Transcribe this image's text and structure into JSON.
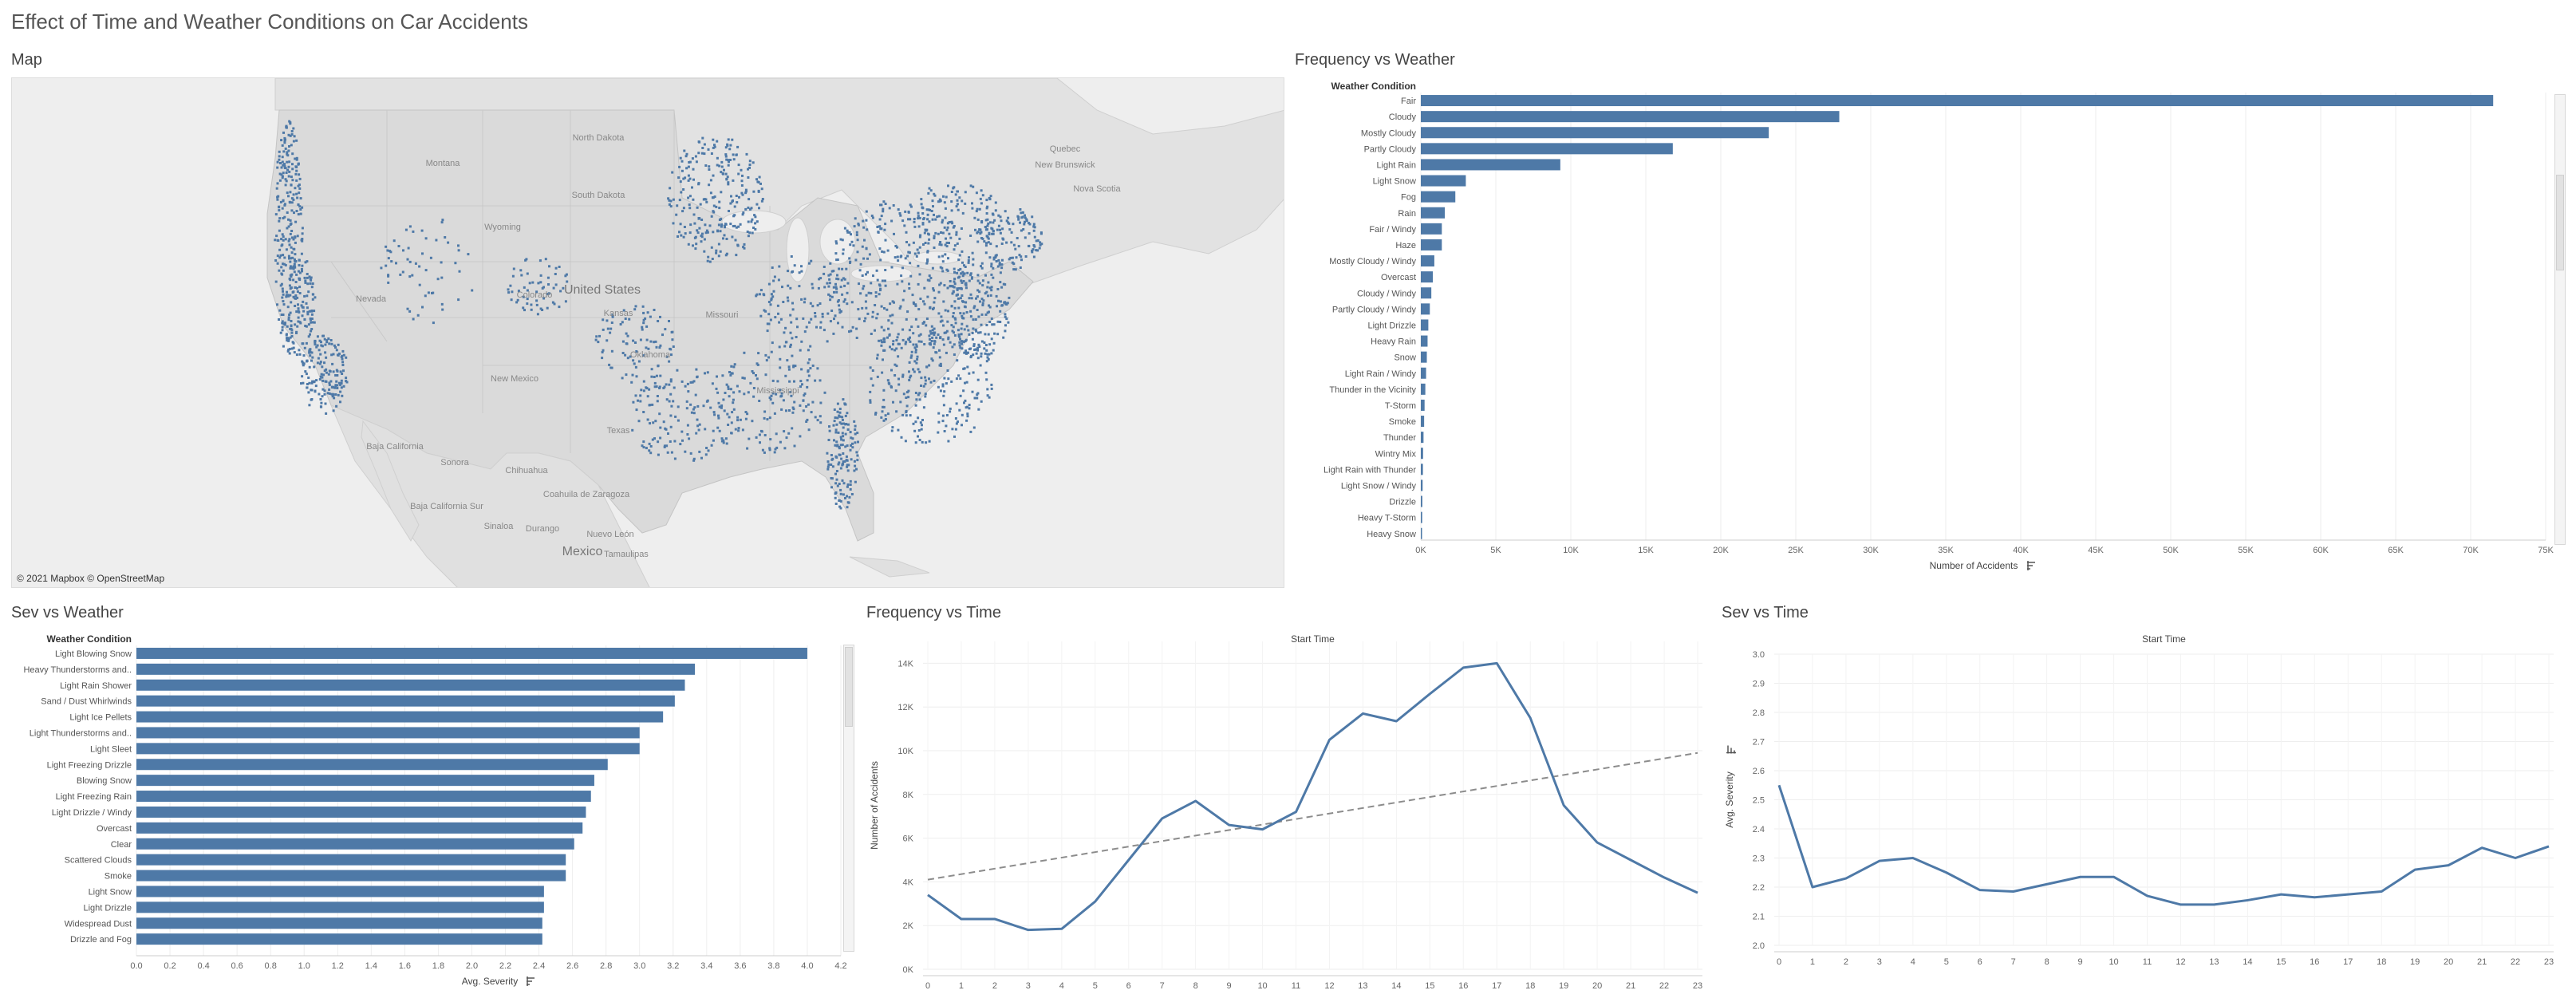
{
  "dashboard": {
    "title": "Effect of Time and Weather Conditions on Car Accidents"
  },
  "map": {
    "title": "Map",
    "credit": "© 2021 Mapbox © OpenStreetMap",
    "labels": {
      "north_dakota": "North Dakota",
      "south_dakota": "South Dakota",
      "montana": "Montana",
      "wyoming": "Wyoming",
      "nevada": "Nevada",
      "colorado": "Colorado",
      "kansas": "Kansas",
      "united_states": "United States",
      "new_mexico": "New Mexico",
      "oklahoma": "Oklahoma",
      "texas": "Texas",
      "missouri": "Missouri",
      "mississippi": "Mississippi",
      "baja_california": "Baja California",
      "sonora": "Sonora",
      "chihuahua": "Chihuahua",
      "coahuila": "Coahuila de Zaragoza",
      "nuevo_leon": "Nuevo León",
      "baja_california_sur": "Baja California Sur",
      "sinaloa": "Sinaloa",
      "durango": "Durango",
      "tamaulipas": "Tamaulipas",
      "mexico": "Mexico",
      "new_brunswick": "New Brunswick",
      "nova_scotia": "Nova Scotia",
      "quebec": "Quebec"
    },
    "colors": {
      "land": "#dcdcdc",
      "border": "#c4c4c4",
      "water": "#eeeeee",
      "points": "#4e79a7"
    }
  },
  "freq_weather": {
    "title": "Frequency vs Weather",
    "header": "Weather Condition",
    "x_label": "Number of Accidents",
    "sort_icon": "sort-descending-icon",
    "chart_data": {
      "type": "bar",
      "orientation": "horizontal",
      "categories": [
        "Fair",
        "Cloudy",
        "Mostly Cloudy",
        "Partly Cloudy",
        "Light Rain",
        "Light Snow",
        "Fog",
        "Rain",
        "Fair / Windy",
        "Haze",
        "Mostly Cloudy / Windy",
        "Overcast",
        "Cloudy / Windy",
        "Partly Cloudy / Windy",
        "Light Drizzle",
        "Heavy Rain",
        "Snow",
        "Light Rain / Windy",
        "Thunder in the Vicinity",
        "T-Storm",
        "Smoke",
        "Thunder",
        "Wintry Mix",
        "Light Rain with Thunder",
        "Light Snow / Windy",
        "Drizzle",
        "Heavy T-Storm",
        "Heavy Snow"
      ],
      "values": [
        71500,
        27900,
        23200,
        16800,
        9300,
        3000,
        2300,
        1600,
        1400,
        1400,
        900,
        800,
        700,
        600,
        500,
        450,
        400,
        350,
        300,
        250,
        220,
        180,
        150,
        140,
        120,
        100,
        90,
        80
      ],
      "xticks": [
        "0K",
        "5K",
        "10K",
        "15K",
        "20K",
        "25K",
        "30K",
        "35K",
        "40K",
        "45K",
        "50K",
        "55K",
        "60K",
        "65K",
        "70K",
        "75K"
      ],
      "xlim": [
        0,
        75000
      ],
      "color": "#4e79a7",
      "grid": true
    }
  },
  "sev_weather": {
    "title": "Sev vs Weather",
    "header": "Weather Condition",
    "x_label": "Avg. Severity",
    "sort_icon": "sort-descending-icon",
    "chart_data": {
      "type": "bar",
      "orientation": "horizontal",
      "categories": [
        "Light Blowing Snow",
        "Heavy Thunderstorms and..",
        "Light Rain Shower",
        "Sand / Dust Whirlwinds",
        "Light Ice Pellets",
        "Light Thunderstorms and..",
        "Light Sleet",
        "Light Freezing Drizzle",
        "Blowing Snow",
        "Light Freezing Rain",
        "Light Drizzle / Windy",
        "Overcast",
        "Clear",
        "Scattered Clouds",
        "Smoke",
        "Light Snow",
        "Light Drizzle",
        "Widespread Dust",
        "Drizzle and Fog"
      ],
      "values": [
        4.0,
        3.33,
        3.27,
        3.21,
        3.14,
        3.0,
        3.0,
        2.81,
        2.73,
        2.71,
        2.68,
        2.66,
        2.61,
        2.56,
        2.56,
        2.43,
        2.43,
        2.42,
        2.42
      ],
      "xticks": [
        "0.0",
        "0.2",
        "0.4",
        "0.6",
        "0.8",
        "1.0",
        "1.2",
        "1.4",
        "1.6",
        "1.8",
        "2.0",
        "2.2",
        "2.4",
        "2.6",
        "2.8",
        "3.0",
        "3.2",
        "3.4",
        "3.6",
        "3.8",
        "4.0",
        "4.2"
      ],
      "xlim": [
        0,
        4.2
      ],
      "color": "#4e79a7",
      "grid": true
    }
  },
  "freq_time": {
    "title": "Frequency vs Time",
    "header": "Start Time",
    "y_label": "Number of Accidents",
    "chart_data": {
      "type": "line",
      "x": [
        0,
        1,
        2,
        3,
        4,
        5,
        6,
        7,
        8,
        9,
        10,
        11,
        12,
        13,
        14,
        15,
        16,
        17,
        18,
        19,
        20,
        21,
        22,
        23
      ],
      "values": [
        3400,
        2300,
        2300,
        1800,
        1850,
        3100,
        5000,
        6900,
        7700,
        6600,
        6400,
        7200,
        10500,
        11700,
        11350,
        12600,
        13800,
        14000,
        11500,
        7500,
        5800,
        5000,
        4200,
        3500
      ],
      "trend": [
        4100,
        9900
      ],
      "yticks": [
        "0K",
        "2K",
        "4K",
        "6K",
        "8K",
        "10K",
        "12K",
        "14K"
      ],
      "ylim": [
        0,
        15000
      ],
      "color": "#4e79a7",
      "trend_color": "#8c8c8c",
      "grid": true
    }
  },
  "sev_time": {
    "title": "Sev vs Time",
    "header": "Start Time",
    "y_label": "Avg. Severity",
    "sort_icon": "sort-icon",
    "chart_data": {
      "type": "line",
      "x": [
        0,
        1,
        2,
        3,
        4,
        5,
        6,
        7,
        8,
        9,
        10,
        11,
        12,
        13,
        14,
        15,
        16,
        17,
        18,
        19,
        20,
        21,
        22,
        23
      ],
      "values": [
        2.55,
        2.2,
        2.23,
        2.29,
        2.3,
        2.25,
        2.19,
        2.185,
        2.21,
        2.235,
        2.235,
        2.17,
        2.14,
        2.14,
        2.155,
        2.175,
        2.165,
        2.175,
        2.185,
        2.26,
        2.275,
        2.335,
        2.3,
        2.34
      ],
      "yticks": [
        "2.0",
        "2.1",
        "2.2",
        "2.3",
        "2.4",
        "2.5",
        "2.6",
        "2.7",
        "2.8",
        "2.9",
        "3.0"
      ],
      "ylim": [
        2.0,
        3.0
      ],
      "color": "#4e79a7",
      "grid": true
    }
  }
}
